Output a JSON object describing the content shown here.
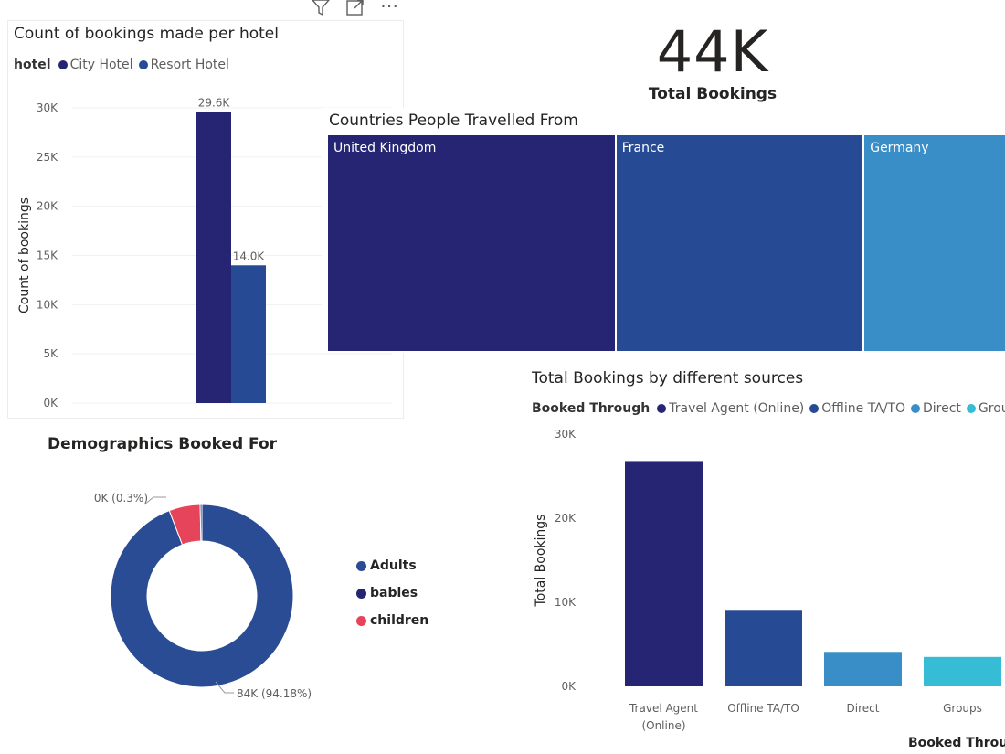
{
  "toolbar": {
    "icons": [
      "filter-icon",
      "focus-mode-icon",
      "more-options-icon"
    ],
    "more_label": "⋯"
  },
  "kpi": {
    "value": "44K",
    "label": "Total Bookings"
  },
  "colors": {
    "navy": "#252573",
    "blue": "#264b94",
    "mid_blue": "#3a8ec8",
    "teal": "#36bcd4",
    "red": "#e5445a",
    "donut_blue": "#2a4c94"
  },
  "chart_data": [
    {
      "id": "hotel_chart",
      "type": "bar",
      "title": "Count of bookings made per hotel",
      "legend_title": "hotel",
      "categories": [
        ""
      ],
      "series": [
        {
          "name": "City Hotel",
          "values": [
            29600
          ],
          "label": "29.6K",
          "color": "#252573"
        },
        {
          "name": "Resort Hotel",
          "values": [
            14000
          ],
          "label": "14.0K",
          "color": "#264b94"
        }
      ],
      "xlabel": "",
      "ylabel": "Count of bookings",
      "ylim": [
        0,
        30000
      ],
      "yticks": [
        0,
        5000,
        10000,
        15000,
        20000,
        25000,
        30000
      ],
      "ytick_labels": [
        "0K",
        "5K",
        "10K",
        "15K",
        "20K",
        "25K",
        "30K"
      ],
      "grid": true
    },
    {
      "id": "country_treemap",
      "type": "treemap",
      "title": "Countries People Travelled From",
      "categories": [
        "United Kingdom",
        "France",
        "Germany"
      ],
      "values": [
        307,
        264,
        168
      ],
      "colors": [
        "#252573",
        "#264b94",
        "#3a8ec8"
      ]
    },
    {
      "id": "sources_chart",
      "type": "bar",
      "title": "Total Bookings by different sources",
      "legend_title": "Booked Through",
      "categories": [
        "Travel Agent (Online)",
        "Offline TA/TO",
        "Direct",
        "Groups"
      ],
      "category_lines": [
        [
          "Travel Agent",
          "(Online)"
        ],
        [
          "Offline TA/TO"
        ],
        [
          "Direct"
        ],
        [
          "Groups"
        ]
      ],
      "values": [
        26800,
        9100,
        4100,
        3500
      ],
      "colors": [
        "#252573",
        "#264b94",
        "#3a8ec8",
        "#36bcd4"
      ],
      "legend_entries": [
        "Travel Agent (Online)",
        "Offline TA/TO",
        "Direct",
        "Group"
      ],
      "xlabel": "Booked Throu",
      "ylabel": "Total Bookings",
      "ylim": [
        0,
        30000
      ],
      "yticks": [
        0,
        10000,
        20000,
        30000
      ],
      "ytick_labels": [
        "0K",
        "10K",
        "20K",
        "30K"
      ],
      "grid": false
    },
    {
      "id": "demographics_donut",
      "type": "pie",
      "title": "Demographics Booked For",
      "categories": [
        "Adults",
        "babies",
        "children"
      ],
      "values": [
        94.18,
        0.3,
        5.52
      ],
      "colors": [
        "#2a4c94",
        "#252573",
        "#e5445a"
      ],
      "data_labels": [
        "84K (94.18%)",
        "0K (0.3%)",
        ""
      ],
      "legend_entries": [
        "Adults",
        "babies",
        "children"
      ]
    }
  ]
}
